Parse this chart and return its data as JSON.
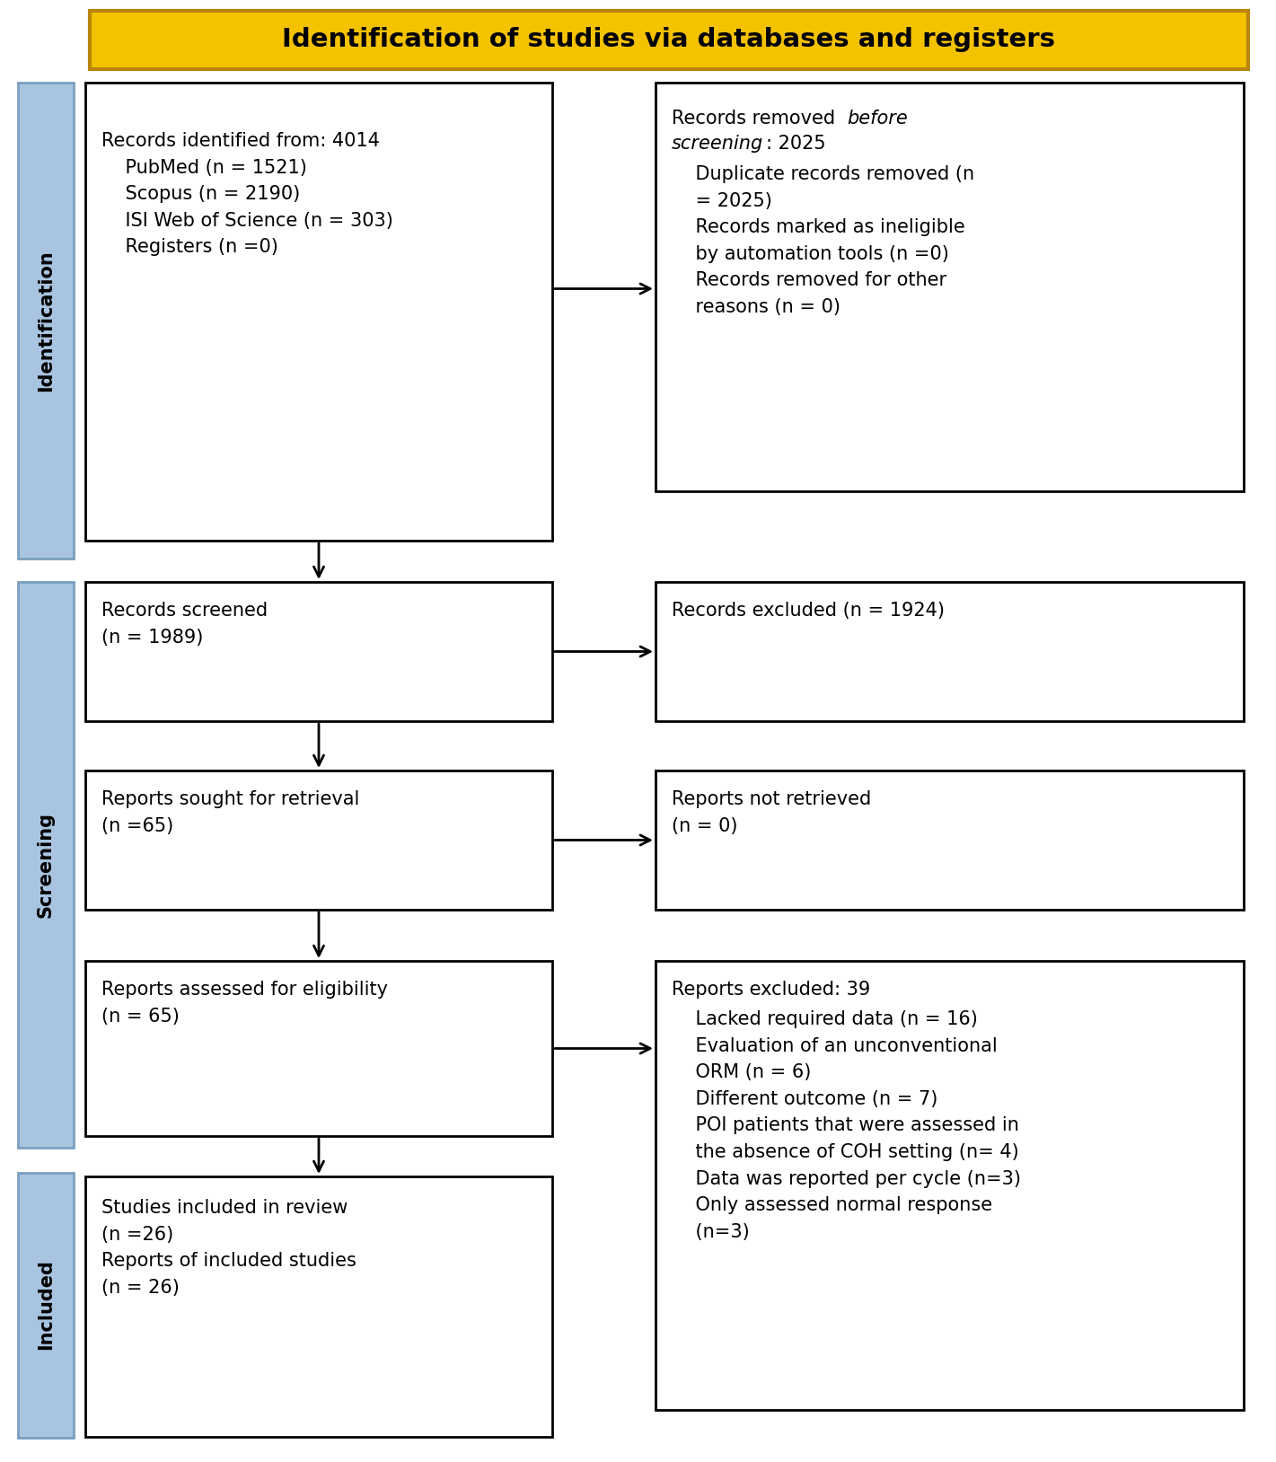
{
  "title": "Identification of studies via databases and registers",
  "title_bg": "#F5C200",
  "title_border": "#B8860B",
  "box_border": "#1a1a1a",
  "box_fill": "#ffffff",
  "sidebar_fill": "#A8C4E0",
  "sidebar_border": "#7a9fbf",
  "arrow_color": "#000000",
  "fig_w": 14.21,
  "fig_h": 16.28,
  "dpi": 100,
  "box1_text": "Records identified from: 4014\n    PubMed (n = 1521)\n    Scopus (n = 2190)\n    ISI Web of Science (n = 303)\n    Registers (n =0)",
  "box2_text_part1": "Records removed ",
  "box2_text_italic": "before\nscreening",
  "box2_text_part2": ": 2025",
  "box2_text_rest": "    Duplicate records removed (n\n    = 2025)\n    Records marked as ineligible\n    by automation tools (n =0)\n    Records removed for other\n    reasons (n = 0)",
  "box3_text": "Records screened\n(n = 1989)",
  "box4_text": "Records excluded (n = 1924)",
  "box5_text": "Reports sought for retrieval\n(n =65)",
  "box6_text": "Reports not retrieved\n(n = 0)",
  "box7_text": "Reports assessed for eligibility\n(n = 65)",
  "box8_text_title": "Reports excluded: 39",
  "box8_text_body": "    Lacked required data (n = 16)\n    Evaluation of an unconventional\n    ORM (n = 6)\n    Different outcome (n = 7)\n    POI patients that were assessed in\n    the absence of COH setting (n= 4)\n    Data was reported per cycle (n=3)\n    Only assessed normal response\n    (n=3)",
  "box9_text": "Studies included in review\n(n =26)\nReports of included studies\n(n = 26)",
  "sidebar_identification": "Identification",
  "sidebar_screening": "Screening",
  "sidebar_included": "Included"
}
